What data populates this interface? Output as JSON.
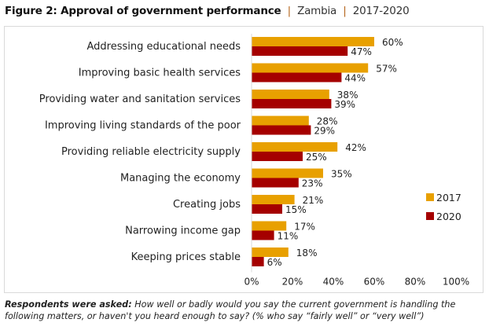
{
  "title": {
    "main": "Figure 2: Approval of government performance",
    "country": "Zambia",
    "period": "2017-2020",
    "separator": "|"
  },
  "chart_data": {
    "type": "bar",
    "orientation": "horizontal",
    "title": "Approval of government performance",
    "xlabel": "",
    "ylabel": "",
    "xlim": [
      0,
      100
    ],
    "x_ticks": [
      "0%",
      "20%",
      "40%",
      "60%",
      "80%",
      "100%"
    ],
    "x_tick_values": [
      0,
      20,
      40,
      60,
      80,
      100
    ],
    "grid": false,
    "legend_position": "right",
    "categories": [
      "Addressing educational needs",
      "Improving basic health services",
      "Providing water and sanitation services",
      "Improving living standards of the poor",
      "Providing reliable electricity supply",
      "Managing  the economy",
      "Creating jobs",
      "Narrowing income gap",
      "Keeping prices stable"
    ],
    "series": [
      {
        "name": "2017",
        "color": "#E8A000",
        "values": [
          60,
          57,
          38,
          28,
          42,
          35,
          21,
          17,
          18
        ]
      },
      {
        "name": "2020",
        "color": "#A50000",
        "values": [
          47,
          44,
          39,
          29,
          25,
          23,
          15,
          11,
          6
        ]
      }
    ],
    "value_suffix": "%"
  },
  "footnote": {
    "question_label": "Respondents were asked:",
    "question_text": " How well or badly would you say the current government is handling the following matters, or haven't you heard enough to say? (% who say “fairly well” or “very well”)"
  }
}
